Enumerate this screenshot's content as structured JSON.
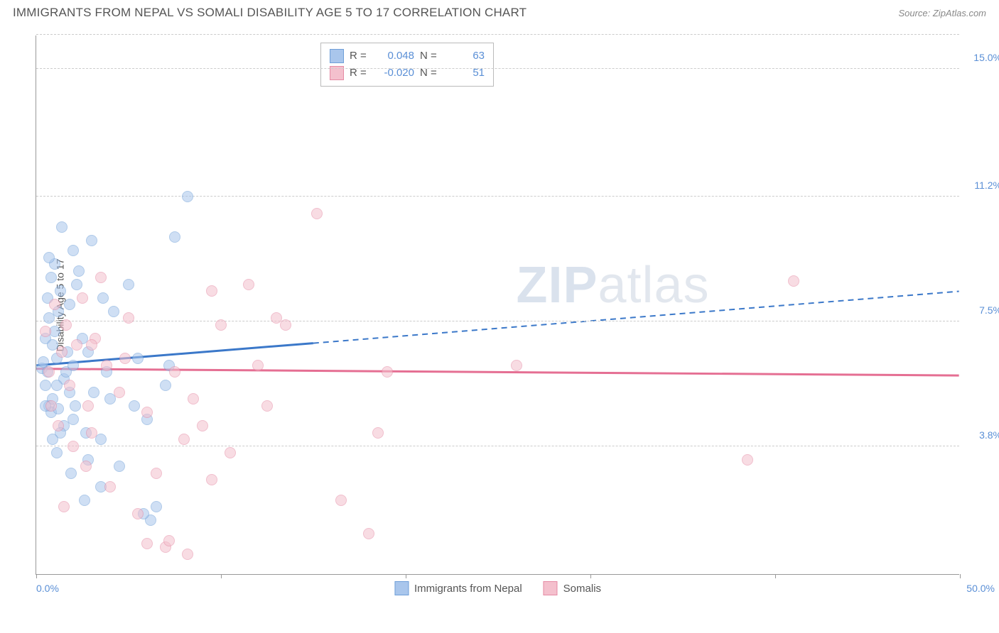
{
  "title": "IMMIGRANTS FROM NEPAL VS SOMALI DISABILITY AGE 5 TO 17 CORRELATION CHART",
  "source": "Source: ZipAtlas.com",
  "watermark_bold": "ZIP",
  "watermark_rest": "atlas",
  "chart": {
    "type": "scatter",
    "ylabel": "Disability Age 5 to 17",
    "xmin": 0.0,
    "xmax": 50.0,
    "ymin": 0.0,
    "ymax": 16.0,
    "xlabel_min": "0.0%",
    "xlabel_max": "50.0%",
    "yticks": [
      {
        "v": 3.8,
        "label": "3.8%"
      },
      {
        "v": 7.5,
        "label": "7.5%"
      },
      {
        "v": 11.2,
        "label": "11.2%"
      },
      {
        "v": 15.0,
        "label": "15.0%"
      }
    ],
    "xtick_positions": [
      0,
      10,
      20,
      30,
      40,
      50
    ],
    "grid_color": "#cccccc",
    "axis_color": "#999999",
    "tick_label_color": "#5a8fd6",
    "background_color": "#ffffff",
    "point_radius": 8,
    "point_opacity": 0.55,
    "series": [
      {
        "name": "Immigrants from Nepal",
        "color_fill": "#a9c6ec",
        "color_stroke": "#6f9fd8",
        "line_color": "#3b78c9",
        "R": "0.048",
        "N": "63",
        "trend": {
          "x1": 0,
          "y1": 6.2,
          "x2": 50,
          "y2": 8.4,
          "solid_until_x": 15
        },
        "points": [
          [
            0.3,
            6.1
          ],
          [
            0.4,
            6.3
          ],
          [
            0.5,
            7.0
          ],
          [
            0.5,
            5.6
          ],
          [
            0.6,
            8.2
          ],
          [
            0.6,
            6.0
          ],
          [
            0.7,
            5.0
          ],
          [
            0.7,
            7.6
          ],
          [
            0.8,
            8.8
          ],
          [
            0.8,
            4.8
          ],
          [
            0.9,
            6.8
          ],
          [
            0.9,
            5.2
          ],
          [
            1.0,
            9.2
          ],
          [
            1.0,
            7.2
          ],
          [
            1.1,
            3.6
          ],
          [
            1.1,
            6.4
          ],
          [
            1.2,
            4.9
          ],
          [
            1.2,
            7.8
          ],
          [
            1.3,
            8.4
          ],
          [
            1.4,
            10.3
          ],
          [
            1.5,
            5.8
          ],
          [
            1.5,
            4.4
          ],
          [
            1.6,
            6.0
          ],
          [
            1.7,
            6.6
          ],
          [
            1.8,
            5.4
          ],
          [
            1.8,
            8.0
          ],
          [
            1.9,
            3.0
          ],
          [
            2.0,
            6.2
          ],
          [
            2.0,
            4.6
          ],
          [
            2.1,
            5.0
          ],
          [
            2.2,
            8.6
          ],
          [
            2.3,
            9.0
          ],
          [
            2.5,
            7.0
          ],
          [
            2.6,
            2.2
          ],
          [
            2.7,
            4.2
          ],
          [
            2.8,
            6.6
          ],
          [
            3.0,
            9.9
          ],
          [
            3.1,
            5.4
          ],
          [
            3.5,
            4.0
          ],
          [
            3.6,
            8.2
          ],
          [
            3.8,
            6.0
          ],
          [
            4.0,
            5.2
          ],
          [
            4.2,
            7.8
          ],
          [
            4.5,
            3.2
          ],
          [
            5.0,
            8.6
          ],
          [
            5.3,
            5.0
          ],
          [
            5.5,
            6.4
          ],
          [
            6.0,
            4.6
          ],
          [
            6.2,
            1.6
          ],
          [
            6.5,
            2.0
          ],
          [
            7.0,
            5.6
          ],
          [
            7.2,
            6.2
          ],
          [
            7.5,
            10.0
          ],
          [
            8.2,
            11.2
          ],
          [
            0.7,
            9.4
          ],
          [
            1.3,
            4.2
          ],
          [
            2.0,
            9.6
          ],
          [
            3.5,
            2.6
          ],
          [
            0.5,
            5.0
          ],
          [
            1.1,
            5.6
          ],
          [
            0.9,
            4.0
          ],
          [
            2.8,
            3.4
          ],
          [
            5.8,
            1.8
          ]
        ]
      },
      {
        "name": "Somalis",
        "color_fill": "#f4c0cd",
        "color_stroke": "#e58ba5",
        "line_color": "#e56f93",
        "R": "-0.020",
        "N": "51",
        "trend": {
          "x1": 0,
          "y1": 6.1,
          "x2": 50,
          "y2": 5.9,
          "solid_until_x": 50
        },
        "points": [
          [
            0.5,
            7.2
          ],
          [
            0.7,
            6.0
          ],
          [
            0.8,
            5.0
          ],
          [
            1.0,
            8.0
          ],
          [
            1.2,
            4.4
          ],
          [
            1.4,
            6.6
          ],
          [
            1.6,
            7.4
          ],
          [
            1.8,
            5.6
          ],
          [
            2.0,
            3.8
          ],
          [
            2.2,
            6.8
          ],
          [
            2.5,
            8.2
          ],
          [
            2.8,
            5.0
          ],
          [
            3.0,
            4.2
          ],
          [
            3.2,
            7.0
          ],
          [
            3.5,
            8.8
          ],
          [
            3.8,
            6.2
          ],
          [
            4.0,
            2.6
          ],
          [
            4.5,
            5.4
          ],
          [
            5.0,
            7.6
          ],
          [
            5.5,
            1.8
          ],
          [
            6.0,
            4.8
          ],
          [
            6.5,
            3.0
          ],
          [
            7.0,
            0.8
          ],
          [
            7.2,
            1.0
          ],
          [
            7.5,
            6.0
          ],
          [
            8.0,
            4.0
          ],
          [
            8.2,
            0.6
          ],
          [
            8.5,
            5.2
          ],
          [
            9.0,
            4.4
          ],
          [
            9.5,
            8.4
          ],
          [
            10.0,
            7.4
          ],
          [
            10.5,
            3.6
          ],
          [
            11.5,
            8.6
          ],
          [
            12.0,
            6.2
          ],
          [
            12.5,
            5.0
          ],
          [
            13.0,
            7.6
          ],
          [
            13.5,
            7.4
          ],
          [
            15.2,
            10.7
          ],
          [
            16.5,
            2.2
          ],
          [
            18.0,
            1.2
          ],
          [
            18.5,
            4.2
          ],
          [
            19.0,
            6.0
          ],
          [
            26.0,
            6.2
          ],
          [
            38.5,
            3.4
          ],
          [
            41.0,
            8.7
          ],
          [
            1.5,
            2.0
          ],
          [
            2.7,
            3.2
          ],
          [
            4.8,
            6.4
          ],
          [
            6.0,
            0.9
          ],
          [
            9.5,
            2.8
          ],
          [
            3.0,
            6.8
          ]
        ]
      }
    ]
  },
  "legend_top": {
    "R_label": "R =",
    "N_label": "N ="
  },
  "legend_bottom": [
    {
      "label": "Immigrants from Nepal",
      "fill": "#a9c6ec",
      "stroke": "#6f9fd8"
    },
    {
      "label": "Somalis",
      "fill": "#f4c0cd",
      "stroke": "#e58ba5"
    }
  ]
}
